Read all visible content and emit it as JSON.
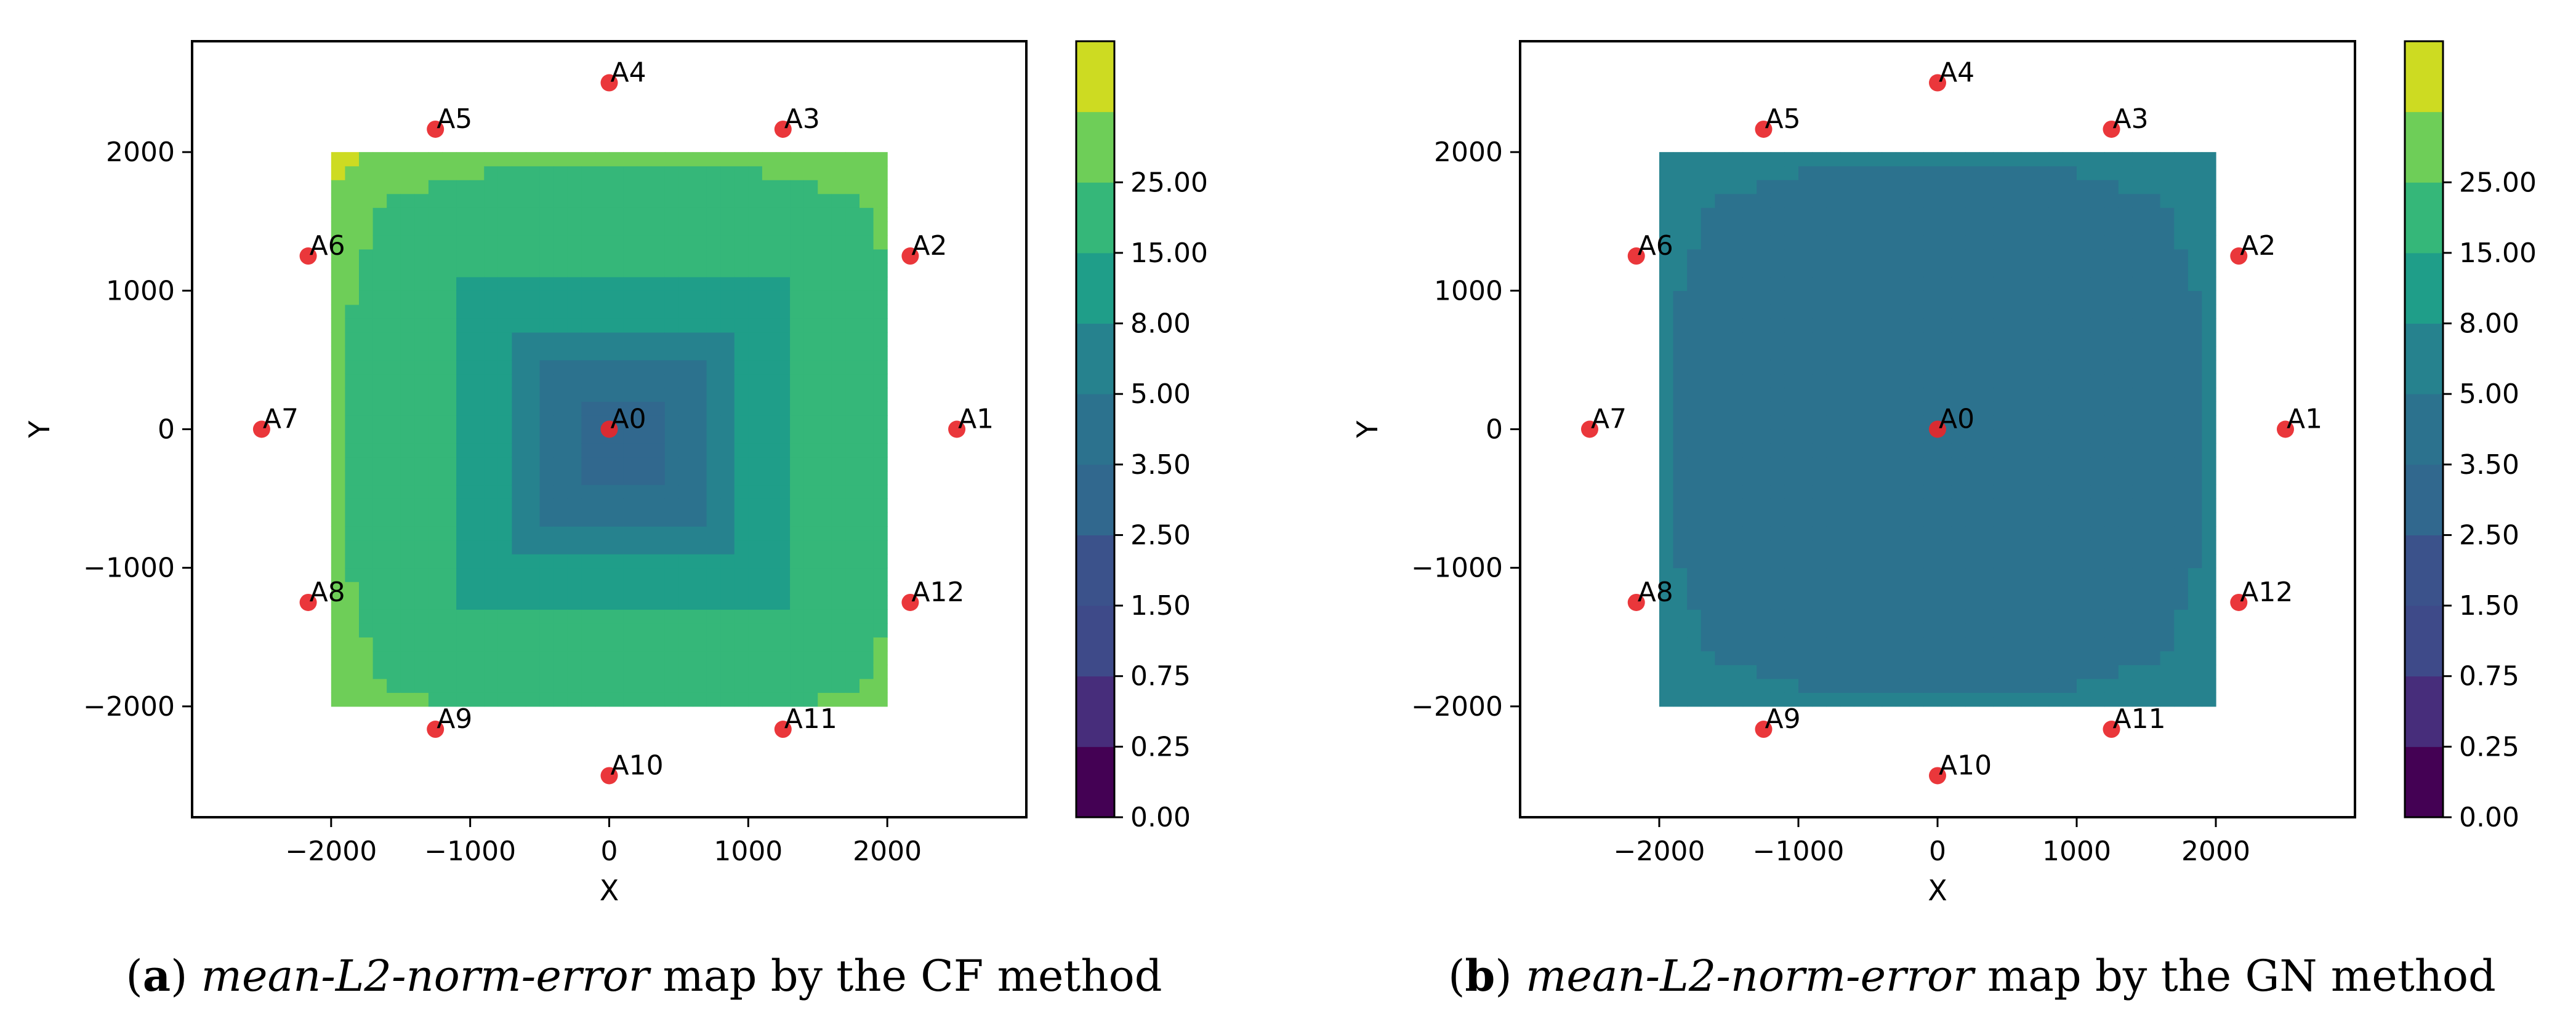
{
  "chart_data": [
    {
      "type": "heatmap",
      "panel": "a",
      "method": "CF",
      "caption": {
        "label": "a",
        "open": "(",
        "close": ")",
        "metric": "mean-L2-norm-error",
        "text": "map by the CF method"
      },
      "xlabel": "X",
      "ylabel": "Y",
      "xlim": [
        -3000,
        3000
      ],
      "ylim": [
        -2800,
        2800
      ],
      "xticks": [
        -2000,
        -1000,
        0,
        1000,
        2000
      ],
      "yticks": [
        -2000,
        -1000,
        0,
        1000,
        2000
      ],
      "xtick_labels": [
        "−2000",
        "−1000",
        "0",
        "1000",
        "2000"
      ],
      "ytick_labels": [
        "−2000",
        "−1000",
        "0",
        "1000",
        "2000"
      ],
      "region": {
        "x": [
          -2000,
          2000
        ],
        "y": [
          -2000,
          2000
        ]
      },
      "field": {
        "center": [
          100,
          -100
        ],
        "center_value": 1.8,
        "edge_value": 15.0,
        "corner_value": 26.0
      },
      "anchors": [
        {
          "name": "A0",
          "x": 0,
          "y": 0
        },
        {
          "name": "A1",
          "x": 2500,
          "y": 0
        },
        {
          "name": "A2",
          "x": 2165,
          "y": 1250
        },
        {
          "name": "A3",
          "x": 1250,
          "y": 2165
        },
        {
          "name": "A4",
          "x": 0,
          "y": 2500
        },
        {
          "name": "A5",
          "x": -1250,
          "y": 2165
        },
        {
          "name": "A6",
          "x": -2165,
          "y": 1250
        },
        {
          "name": "A7",
          "x": -2500,
          "y": 0
        },
        {
          "name": "A8",
          "x": -2165,
          "y": -1250
        },
        {
          "name": "A9",
          "x": -1250,
          "y": -2165
        },
        {
          "name": "A10",
          "x": 0,
          "y": -2500
        },
        {
          "name": "A11",
          "x": 1250,
          "y": -2165
        },
        {
          "name": "A12",
          "x": 2165,
          "y": -1250
        }
      ],
      "colorbar": {
        "levels": [
          0.0,
          0.25,
          0.75,
          1.5,
          2.5,
          3.5,
          5.0,
          8.0,
          15.0,
          25.0
        ],
        "tick_labels": [
          "0.00",
          "0.25",
          "0.75",
          "1.50",
          "2.50",
          "3.50",
          "5.00",
          "8.00",
          "15.00",
          "25.00"
        ],
        "colors": [
          "#440154",
          "#472d7b",
          "#3e4a89",
          "#3b528b",
          "#31688e",
          "#2c728e",
          "#26828e",
          "#1f9e89",
          "#35b779",
          "#6ece58",
          "#cddb22"
        ]
      }
    },
    {
      "type": "heatmap",
      "panel": "b",
      "method": "GN",
      "caption": {
        "label": "b",
        "open": "(",
        "close": ")",
        "metric": "mean-L2-norm-error",
        "text": "map by the GN method"
      },
      "xlabel": "X",
      "ylabel": "Y",
      "xlim": [
        -3000,
        3000
      ],
      "ylim": [
        -2800,
        2800
      ],
      "xticks": [
        -2000,
        -1000,
        0,
        1000,
        2000
      ],
      "yticks": [
        -2000,
        -1000,
        0,
        1000,
        2000
      ],
      "xtick_labels": [
        "−2000",
        "−1000",
        "0",
        "1000",
        "2000"
      ],
      "ytick_labels": [
        "−2000",
        "−1000",
        "0",
        "1000",
        "2000"
      ],
      "region": {
        "x": [
          -2000,
          2000
        ],
        "y": [
          -2000,
          2000
        ]
      },
      "field": {
        "center": [
          0,
          0
        ],
        "center_value": 2.7,
        "edge_value": 3.6,
        "corner_value": 5.2
      },
      "anchors": [
        {
          "name": "A0",
          "x": 0,
          "y": 0
        },
        {
          "name": "A1",
          "x": 2500,
          "y": 0
        },
        {
          "name": "A2",
          "x": 2165,
          "y": 1250
        },
        {
          "name": "A3",
          "x": 1250,
          "y": 2165
        },
        {
          "name": "A4",
          "x": 0,
          "y": 2500
        },
        {
          "name": "A5",
          "x": -1250,
          "y": 2165
        },
        {
          "name": "A6",
          "x": -2165,
          "y": 1250
        },
        {
          "name": "A7",
          "x": -2500,
          "y": 0
        },
        {
          "name": "A8",
          "x": -2165,
          "y": -1250
        },
        {
          "name": "A9",
          "x": -1250,
          "y": -2165
        },
        {
          "name": "A10",
          "x": 0,
          "y": -2500
        },
        {
          "name": "A11",
          "x": 1250,
          "y": -2165
        },
        {
          "name": "A12",
          "x": 2165,
          "y": -1250
        }
      ],
      "colorbar": {
        "levels": [
          0.0,
          0.25,
          0.75,
          1.5,
          2.5,
          3.5,
          5.0,
          8.0,
          15.0,
          25.0
        ],
        "tick_labels": [
          "0.00",
          "0.25",
          "0.75",
          "1.50",
          "2.50",
          "3.50",
          "5.00",
          "8.00",
          "15.00",
          "25.00"
        ],
        "colors": [
          "#440154",
          "#472d7b",
          "#3e4a89",
          "#3b528b",
          "#31688e",
          "#2c728e",
          "#26828e",
          "#1f9e89",
          "#35b779",
          "#6ece58",
          "#cddb22"
        ]
      }
    }
  ]
}
